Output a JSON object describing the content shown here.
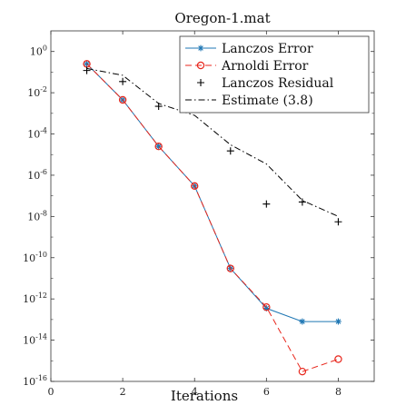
{
  "chart_data": {
    "type": "line",
    "title": "Oregon-1.mat",
    "xlabel": "Iterations",
    "ylabel": "",
    "xlim": [
      0,
      9
    ],
    "ylim": [
      1e-16,
      10.0
    ],
    "yscale": "log",
    "xticks": [
      0,
      2,
      4,
      6,
      8
    ],
    "xtick_labels": [
      "0",
      "2",
      "4",
      "6",
      "8"
    ],
    "yticks": [
      1e-16,
      1e-14,
      1e-12,
      1e-10,
      1e-08,
      1e-06,
      0.0001,
      0.01,
      1
    ],
    "ytick_labels": [
      {
        "base": "10",
        "exp": "-16"
      },
      {
        "base": "10",
        "exp": "-14"
      },
      {
        "base": "10",
        "exp": "-12"
      },
      {
        "base": "10",
        "exp": "-10"
      },
      {
        "base": "10",
        "exp": "-8"
      },
      {
        "base": "10",
        "exp": "-6"
      },
      {
        "base": "10",
        "exp": "-4"
      },
      {
        "base": "10",
        "exp": "-2"
      },
      {
        "base": "10",
        "exp": "0"
      }
    ],
    "grid": false,
    "legend_position": "top-right",
    "series": [
      {
        "name": "Lanczos Error",
        "color": "#1f77b4",
        "line": "solid",
        "marker": "asterisk",
        "x": [
          1,
          2,
          3,
          4,
          5,
          6,
          7,
          8
        ],
        "y": [
          0.25,
          0.0045,
          2.5e-05,
          3e-07,
          3e-11,
          3.5e-13,
          8e-14,
          8e-14
        ]
      },
      {
        "name": "Arnoldi Error",
        "color": "#e8261c",
        "line": "dashed",
        "marker": "circle",
        "x": [
          1,
          2,
          3,
          4,
          5,
          6,
          7,
          8
        ],
        "y": [
          0.25,
          0.0045,
          2.5e-05,
          3e-07,
          3e-11,
          4e-13,
          3e-16,
          1.2e-15
        ]
      },
      {
        "name": "Lanczos Residual",
        "color": "#000000",
        "line": "none",
        "marker": "plus",
        "x": [
          1,
          2,
          3,
          4,
          5,
          6,
          7,
          8
        ],
        "y": [
          0.12,
          0.035,
          0.0022,
          0.0022,
          1.5e-05,
          4e-08,
          5e-08,
          5.5e-09
        ]
      },
      {
        "name": "Estimate (3.8)",
        "color": "#000000",
        "line": "dashdot",
        "marker": "none",
        "x": [
          1,
          2,
          3,
          4,
          5,
          6,
          7,
          8
        ],
        "y": [
          0.15,
          0.07,
          0.003,
          0.0008,
          3e-05,
          3.5e-06,
          6e-08,
          1e-08
        ]
      }
    ]
  }
}
